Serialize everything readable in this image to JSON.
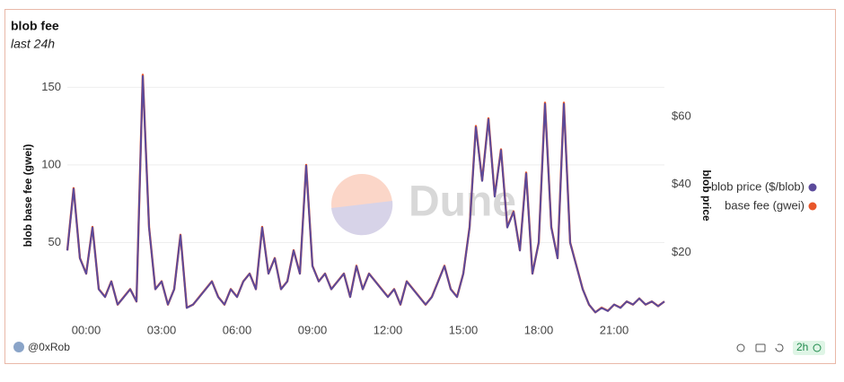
{
  "chart_data": {
    "type": "line",
    "title": "blob fee",
    "subtitle": "last 24h",
    "y_label": "blob base fee (gwei)",
    "y2_label": "blob price",
    "watermark": "Dune",
    "author": "@0xRob",
    "refresh": "2h",
    "legend": "right",
    "grid": true,
    "x": [
      "23:15",
      "23:30",
      "23:45",
      "00:00",
      "00:15",
      "00:30",
      "00:45",
      "01:00",
      "01:15",
      "01:30",
      "01:45",
      "02:00",
      "02:15",
      "02:30",
      "02:45",
      "03:00",
      "03:15",
      "03:30",
      "03:45",
      "04:00",
      "04:15",
      "04:30",
      "04:45",
      "05:00",
      "05:15",
      "05:30",
      "05:45",
      "06:00",
      "06:15",
      "06:30",
      "06:45",
      "07:00",
      "07:15",
      "07:30",
      "07:45",
      "08:00",
      "08:15",
      "08:30",
      "08:45",
      "09:00",
      "09:15",
      "09:30",
      "09:45",
      "10:00",
      "10:15",
      "10:30",
      "10:45",
      "11:00",
      "11:15",
      "11:30",
      "11:45",
      "12:00",
      "12:15",
      "12:30",
      "12:45",
      "13:00",
      "13:15",
      "13:30",
      "13:45",
      "14:00",
      "14:15",
      "14:30",
      "14:45",
      "15:00",
      "15:15",
      "15:30",
      "15:45",
      "16:00",
      "16:15",
      "16:30",
      "16:45",
      "17:00",
      "17:15",
      "17:30",
      "17:45",
      "18:00",
      "18:15",
      "18:30",
      "18:45",
      "19:00",
      "19:15",
      "19:30",
      "19:45",
      "20:00",
      "20:15",
      "20:30",
      "20:45",
      "21:00",
      "21:15",
      "21:30",
      "21:45",
      "22:00",
      "22:15",
      "22:30",
      "22:45",
      "23:00"
    ],
    "ylim": [
      0,
      160
    ],
    "yticks": [
      50,
      100,
      150
    ],
    "y2lim": [
      0,
      73.2
    ],
    "y2ticks": [
      {
        "value": 20,
        "label": "$20"
      },
      {
        "value": 40,
        "label": "$40"
      },
      {
        "value": 60,
        "label": "$60"
      }
    ],
    "series": [
      {
        "name": "blob price ($/blob)",
        "color": "#5b4a9b",
        "axis": "y2",
        "values": [
          20.5,
          38.7,
          18.2,
          13.7,
          27.3,
          9.1,
          6.8,
          11.4,
          4.6,
          6.8,
          9.1,
          5.5,
          71.9,
          27.3,
          9.1,
          11.4,
          4.6,
          9.1,
          25.0,
          3.6,
          4.6,
          6.8,
          9.1,
          11.4,
          6.8,
          4.6,
          9.1,
          6.8,
          11.4,
          13.7,
          9.1,
          27.3,
          13.7,
          18.2,
          9.1,
          11.4,
          20.5,
          13.7,
          45.5,
          15.9,
          11.4,
          13.7,
          9.1,
          11.4,
          13.7,
          6.8,
          15.9,
          9.1,
          13.7,
          11.4,
          9.1,
          6.8,
          9.1,
          4.6,
          11.4,
          9.1,
          6.8,
          4.6,
          6.8,
          11.4,
          15.9,
          9.1,
          6.8,
          13.7,
          27.3,
          56.9,
          41.0,
          59.2,
          36.4,
          50.1,
          27.3,
          31.9,
          20.5,
          43.2,
          13.7,
          22.8,
          63.7,
          27.3,
          18.2,
          63.7,
          22.8,
          15.9,
          9.1,
          4.6,
          2.3,
          3.6,
          2.7,
          4.6,
          3.6,
          5.5,
          4.6,
          6.4,
          4.6,
          5.5,
          4.1,
          5.5
        ]
      },
      {
        "name": "base fee (gwei)",
        "color": "#e8562a",
        "values": [
          45,
          85,
          40,
          30,
          60,
          20,
          15,
          25,
          10,
          15,
          20,
          12,
          158,
          60,
          20,
          25,
          10,
          20,
          55,
          8,
          10,
          15,
          20,
          25,
          15,
          10,
          20,
          15,
          25,
          30,
          20,
          60,
          30,
          40,
          20,
          25,
          45,
          30,
          100,
          35,
          25,
          30,
          20,
          25,
          30,
          15,
          35,
          20,
          30,
          25,
          20,
          15,
          20,
          10,
          25,
          20,
          15,
          10,
          15,
          25,
          35,
          20,
          15,
          30,
          60,
          125,
          90,
          130,
          80,
          110,
          60,
          70,
          45,
          95,
          30,
          50,
          140,
          60,
          40,
          140,
          50,
          35,
          20,
          10,
          5,
          8,
          6,
          10,
          8,
          12,
          10,
          14,
          10,
          12,
          9,
          12
        ]
      }
    ]
  }
}
